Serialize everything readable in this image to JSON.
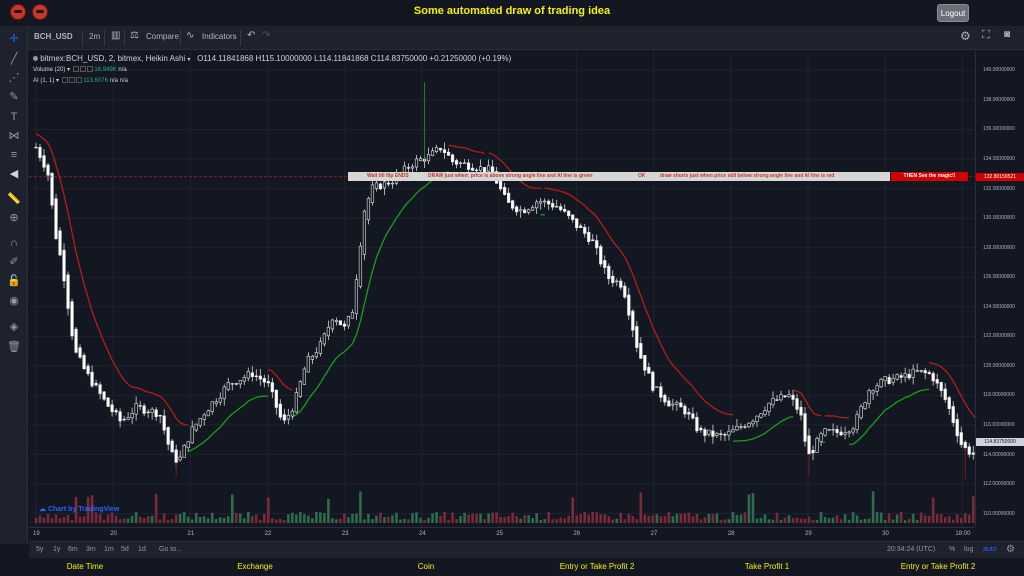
{
  "header": {
    "title": "Some automated draw of trading idea",
    "logout_label": "Logout"
  },
  "toolbar": {
    "symbol": "BCH_USD",
    "interval": "2m",
    "compare_label": "Compare",
    "indicators_label": "Indicators"
  },
  "legend": {
    "symbol_line": "bitmex:BCH_USD, 2, bitmex, Heikin Ashi",
    "open": "O114.11841868",
    "high": "H115.10000000",
    "low": "L114.11841868",
    "close": "C114.83750000",
    "change": "+0.21250000 (+0.19%)",
    "volume_label": "Volume (20)",
    "volume_value": "16.949K",
    "volume_na": "n/a",
    "ai_label": "AI (1, 1)",
    "ai_value": "113.6076",
    "ai_na1": "n/a",
    "ai_na2": "n/a"
  },
  "annotation": {
    "part1": "Wait till flip ENDS",
    "part2": "DRAW just when: price is above strong angle line and AI line is green",
    "part3": "OK",
    "part4": "draw shorts just when price still below strong angle line and AI line is red",
    "part5": "THEN See the magic!!"
  },
  "price_axis": {
    "ticks": [
      "140.00000000",
      "138.00000000",
      "136.00000000",
      "134.00000000",
      "132.00000000",
      "130.00000000",
      "128.00000000",
      "126.00000000",
      "124.00000000",
      "122.00000000",
      "120.00000000",
      "118.00000000",
      "116.00000000",
      "114.00000000",
      "112.00000000",
      "110.00000000"
    ],
    "marked_price": "132.80159521",
    "last_price": "114.83750000"
  },
  "time_axis": {
    "ticks": [
      "19",
      "20",
      "21",
      "22",
      "23",
      "24",
      "25",
      "26",
      "27",
      "28",
      "29",
      "30",
      "18:00"
    ]
  },
  "bottom": {
    "ranges": [
      "5y",
      "1y",
      "6m",
      "3m",
      "1m",
      "5d",
      "1d"
    ],
    "goto": "Go to...",
    "clock": "20:34:24 (UTC)",
    "percent": "%",
    "log": "log",
    "auto": "auto"
  },
  "watermark": "Chart by TradingView",
  "footer": [
    "Date Time",
    "Exchange",
    "Coin",
    "Entry or Take Profit 2",
    "Take Profit 1",
    "Entry or Take Profit 2"
  ],
  "colors": {
    "up": "#ffffff",
    "down": "#ffffff",
    "ai_green": "#1b9e1b",
    "ai_red": "#b71c1c",
    "vol_up": "#2e6b4f",
    "vol_down": "#7a2a38",
    "header_text": "#f4f400"
  },
  "chart_data": {
    "type": "candlestick",
    "symbol": "BCH_USD",
    "ylim": [
      109.5,
      140.5
    ],
    "xlabels": [
      "19",
      "20",
      "21",
      "22",
      "23",
      "24",
      "25",
      "26",
      "27",
      "28",
      "29",
      "30",
      "18:00"
    ],
    "x_day": [
      0,
      1,
      2,
      3,
      4,
      5,
      6,
      7,
      8,
      9,
      10,
      11,
      12,
      12.6
    ],
    "close_anchors": [
      [
        0.0,
        134.8
      ],
      [
        0.15,
        133.2
      ],
      [
        0.25,
        129.0
      ],
      [
        0.35,
        126.5
      ],
      [
        0.5,
        121.0
      ],
      [
        0.65,
        119.5
      ],
      [
        0.9,
        117.5
      ],
      [
        1.1,
        116.2
      ],
      [
        1.3,
        117.2
      ],
      [
        1.6,
        116.8
      ],
      [
        1.75,
        114.0
      ],
      [
        1.85,
        113.5
      ],
      [
        2.0,
        115.5
      ],
      [
        2.2,
        117.0
      ],
      [
        2.5,
        118.8
      ],
      [
        2.8,
        119.5
      ],
      [
        3.0,
        118.8
      ],
      [
        3.2,
        116.0
      ],
      [
        3.35,
        117.5
      ],
      [
        3.5,
        120.2
      ],
      [
        3.7,
        121.5
      ],
      [
        3.85,
        123.5
      ],
      [
        4.0,
        122.5
      ],
      [
        4.1,
        123.8
      ],
      [
        4.25,
        130.5
      ],
      [
        4.35,
        132.0
      ],
      [
        4.6,
        132.5
      ],
      [
        4.9,
        133.8
      ],
      [
        5.1,
        134.2
      ],
      [
        5.25,
        134.8
      ],
      [
        5.4,
        133.8
      ],
      [
        5.6,
        133.6
      ],
      [
        5.9,
        133.2
      ],
      [
        6.1,
        131.0
      ],
      [
        6.3,
        130.5
      ],
      [
        6.5,
        131.2
      ],
      [
        6.75,
        130.8
      ],
      [
        7.0,
        129.5
      ],
      [
        7.2,
        128.5
      ],
      [
        7.4,
        126.0
      ],
      [
        7.6,
        125.5
      ],
      [
        7.8,
        121.0
      ],
      [
        8.0,
        118.5
      ],
      [
        8.2,
        117.5
      ],
      [
        8.4,
        117.0
      ],
      [
        8.6,
        115.5
      ],
      [
        8.9,
        115.2
      ],
      [
        9.1,
        115.8
      ],
      [
        9.3,
        116.5
      ],
      [
        9.5,
        117.5
      ],
      [
        9.75,
        118.0
      ],
      [
        9.9,
        116.8
      ],
      [
        10.0,
        113.8
      ],
      [
        10.2,
        115.5
      ],
      [
        10.4,
        115.5
      ],
      [
        10.6,
        116.0
      ],
      [
        10.8,
        118.5
      ],
      [
        11.0,
        119.0
      ],
      [
        11.2,
        119.2
      ],
      [
        11.4,
        119.6
      ],
      [
        11.6,
        119.4
      ],
      [
        11.8,
        117.5
      ],
      [
        12.0,
        114.5
      ],
      [
        12.15,
        114.0
      ],
      [
        12.3,
        114.6
      ],
      [
        12.4,
        114.8
      ]
    ],
    "series": [
      {
        "name": "AI (1, 1)",
        "note": "line colored green above / red below"
      },
      {
        "name": "Volume (20)"
      }
    ],
    "last_close": 114.8375,
    "annotation_price": 132.80159521
  }
}
